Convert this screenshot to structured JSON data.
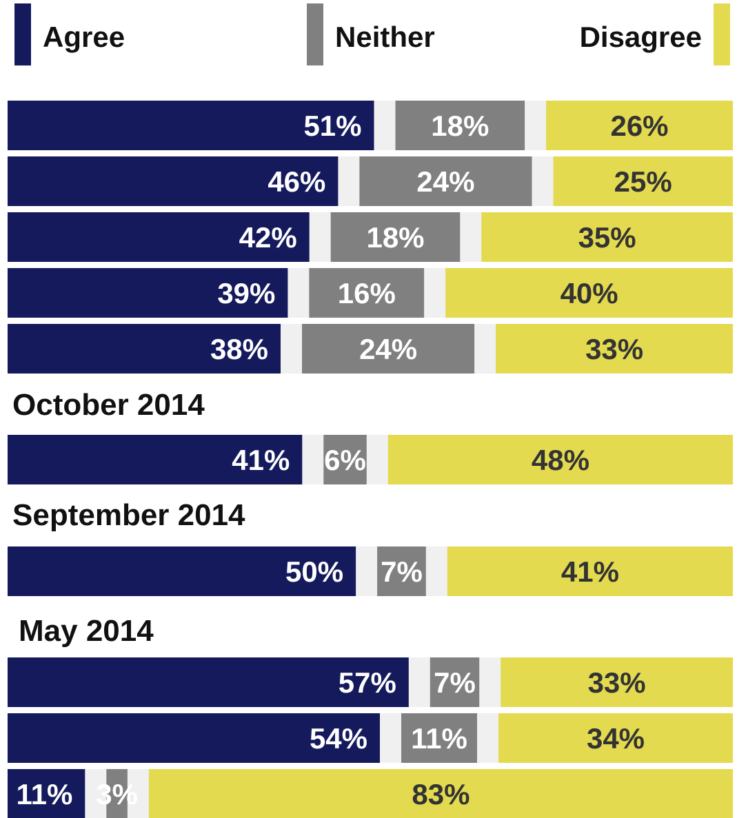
{
  "colors": {
    "agree": "#141A5C",
    "neither": "#808080",
    "disagree": "#E3DA50",
    "track": "#F0F0F0",
    "label_light": "#FFFFFF",
    "label_dark": "#333333"
  },
  "chart_data": {
    "type": "bar",
    "orientation": "horizontal-stacked",
    "legend": {
      "placement": "top",
      "entries": [
        "Agree",
        "Neither",
        "Disagree"
      ]
    },
    "series_names": [
      "Agree",
      "Neither",
      "Disagree"
    ],
    "groups": [
      {
        "label": "",
        "rows": [
          {
            "agree": 51,
            "neither": 18,
            "disagree": 26,
            "labels": [
              "51%",
              "18%",
              "26%"
            ]
          },
          {
            "agree": 46,
            "neither": 24,
            "disagree": 25,
            "labels": [
              "46%",
              "24%",
              "25%"
            ]
          },
          {
            "agree": 42,
            "neither": 18,
            "disagree": 35,
            "labels": [
              "42%",
              "18%",
              "35%"
            ]
          },
          {
            "agree": 39,
            "neither": 16,
            "disagree": 40,
            "labels": [
              "39%",
              "16%",
              "40%"
            ]
          },
          {
            "agree": 38,
            "neither": 24,
            "disagree": 33,
            "labels": [
              "38%",
              "24%",
              "33%"
            ]
          }
        ]
      },
      {
        "label": "October 2014",
        "rows": [
          {
            "agree": 41,
            "neither": 6,
            "disagree": 48,
            "labels": [
              "41%",
              "6%",
              "48%"
            ]
          }
        ]
      },
      {
        "label": "September 2014",
        "rows": [
          {
            "agree": 50,
            "neither": 7,
            "disagree": 41,
            "labels": [
              "50%",
              "7%",
              "41%"
            ]
          }
        ]
      },
      {
        "label": "May 2014",
        "rows": [
          {
            "agree": 57,
            "neither": 7,
            "disagree": 33,
            "labels": [
              "57%",
              "7%",
              "33%"
            ]
          },
          {
            "agree": 54,
            "neither": 11,
            "disagree": 34,
            "labels": [
              "54%",
              "11%",
              "34%"
            ]
          },
          {
            "agree": 11,
            "neither": 3,
            "disagree": 83,
            "labels": [
              "11%",
              "3%",
              "83%"
            ]
          }
        ]
      }
    ],
    "grid": false
  }
}
